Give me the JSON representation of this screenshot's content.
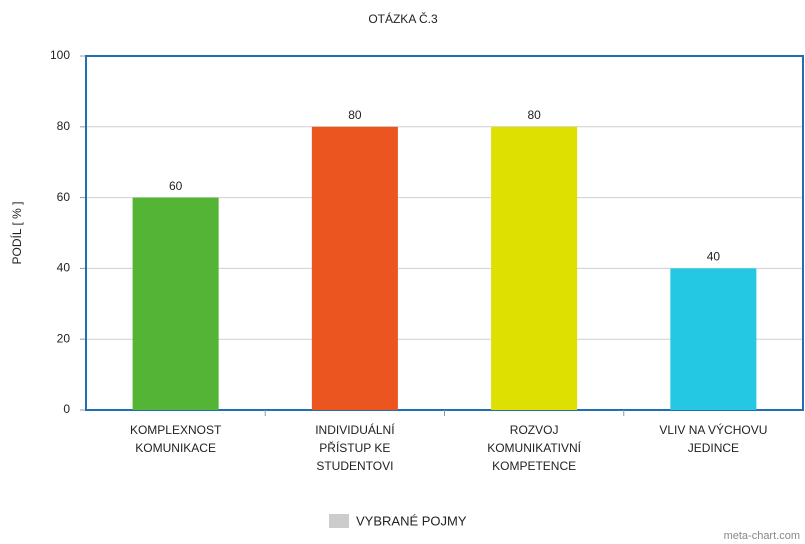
{
  "chart_data": {
    "type": "bar",
    "title": "OTÁZKA Č.3",
    "y_label": "PODÍL [ % ]",
    "categories": [
      "KOMPLEXNOST\nKOMUNIKACE",
      "INDIVIDUÁLNÍ\nPŘÍSTUP KE\nSTUDENTOVI",
      "ROZVOJ\nKOMUNIKATIVNÍ\nKOMPETENCE",
      "VLIV NA VÝCHOVU\nJEDINCE"
    ],
    "series": [
      {
        "name": "VYBRANÉ POJMY",
        "color": "#cccccc",
        "colors": [
          "#54b435",
          "#ea5520",
          "#dde000",
          "#24c8e2"
        ],
        "values": [
          60,
          80,
          80,
          40
        ]
      }
    ],
    "ylim": [
      0,
      100
    ],
    "yticks": [
      0,
      20,
      40,
      60,
      80,
      100
    ],
    "grid": true,
    "legend": "bottom",
    "watermark": "meta-chart.com"
  }
}
